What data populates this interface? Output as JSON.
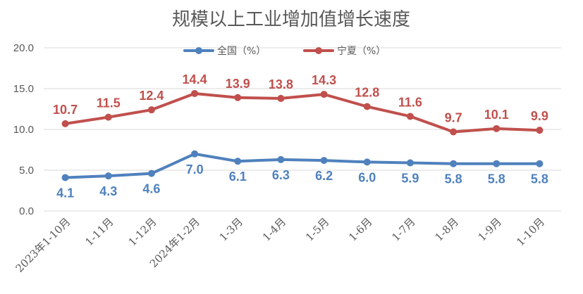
{
  "chart_data": {
    "type": "line",
    "title": "规模以上工业增加值增长速度",
    "categories": [
      "2023年1-10月",
      "1-11月",
      "1-12月",
      "2024年1-2月",
      "1-3月",
      "1-4月",
      "1-5月",
      "1-6月",
      "1-7月",
      "1-8月",
      "1-9月",
      "1-10月"
    ],
    "series": [
      {
        "name": "全国（%）",
        "color": "#4F81BD",
        "values": [
          4.1,
          4.3,
          4.6,
          7.0,
          6.1,
          6.3,
          6.2,
          6.0,
          5.9,
          5.8,
          5.8,
          5.8
        ],
        "labels": [
          "4.1",
          "4.3",
          "4.6",
          "7.0",
          "6.1",
          "6.3",
          "6.2",
          "6.0",
          "5.9",
          "5.8",
          "5.8",
          "5.8"
        ]
      },
      {
        "name": "宁夏（%）",
        "color": "#C0504D",
        "values": [
          10.7,
          11.5,
          12.4,
          14.4,
          13.9,
          13.8,
          14.3,
          12.8,
          11.6,
          9.7,
          10.1,
          9.9
        ],
        "labels": [
          "10.7",
          "11.5",
          "12.4",
          "14.4",
          "13.9",
          "13.8",
          "14.3",
          "12.8",
          "11.6",
          "9.7",
          "10.1",
          "9.9"
        ]
      }
    ],
    "ylim": [
      0,
      20
    ],
    "yticks": [
      "0.0",
      "5.0",
      "10.0",
      "15.0",
      "20.0"
    ],
    "legend": "top-center",
    "grid": true
  }
}
